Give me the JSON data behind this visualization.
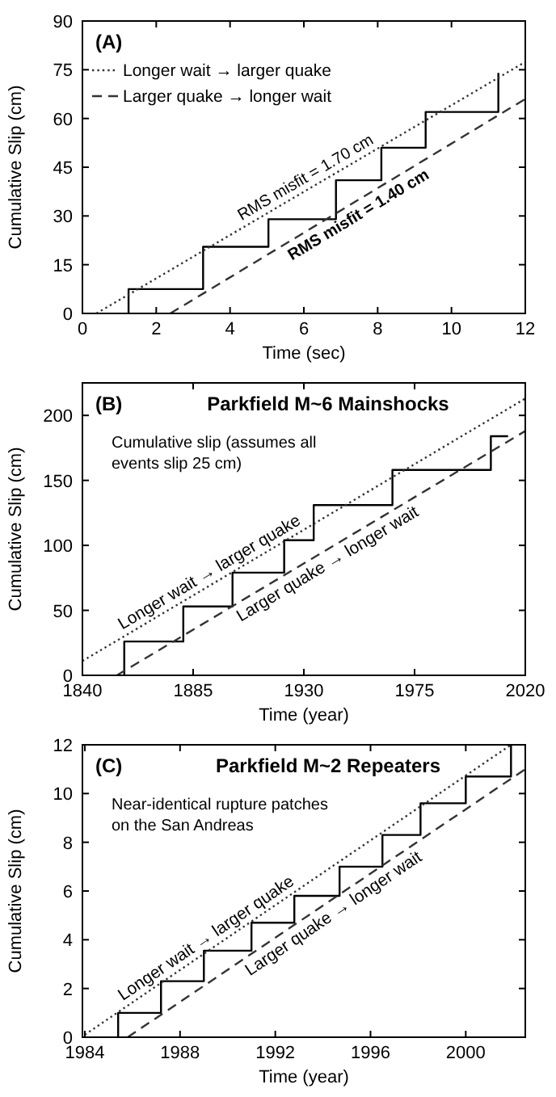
{
  "chart_data": [
    {
      "type": "line",
      "title": "(A)",
      "xlabel": "Time (sec)",
      "ylabel": "Cumulative Slip (cm)",
      "xlim": [
        0,
        12
      ],
      "xticks": [
        0,
        2,
        4,
        6,
        8,
        10,
        12
      ],
      "ylim": [
        0,
        90
      ],
      "yticks": [
        0,
        15,
        30,
        45,
        60,
        75,
        90
      ],
      "legend": "top left",
      "annotations": [
        {
          "text": "RMS misfit = 1.70 cm",
          "x": 6.2,
          "y": 38.8
        },
        {
          "text": "RMS misfit = 1.40 cm",
          "x": 7.3,
          "y": 33.7
        }
      ],
      "series": [
        {
          "type": "step",
          "color": "#000000",
          "x": [
            1.25,
            1.25,
            3.27,
            5.04,
            6.87,
            8.1,
            9.3,
            11.27
          ],
          "values": [
            0,
            7.5,
            20.5,
            29,
            41,
            51,
            62,
            74
          ]
        },
        {
          "name": "Longer wait → larger quake",
          "color": "#333333",
          "line_style": "dotted",
          "x": [
            0.38,
            12
          ],
          "values": [
            0,
            77.4
          ]
        },
        {
          "name": "Larger quake → longer wait",
          "color": "#333333",
          "line_style": "dashed",
          "x": [
            2.38,
            12
          ],
          "values": [
            0,
            66
          ]
        }
      ]
    },
    {
      "type": "line",
      "title": "(B)",
      "subtitle": "Parkfield M~6  Mainshocks",
      "xlabel": "Time (year)",
      "ylabel": "Cumulative Slip (cm)",
      "xlim": [
        1840,
        2020
      ],
      "xticks": [
        1840,
        1885,
        1930,
        1975,
        2020
      ],
      "ylim": [
        0,
        225
      ],
      "yticks": [
        0,
        50,
        100,
        150,
        200
      ],
      "legend": false,
      "annotations": [
        "Cumulative slip (assumes all events slip 25 cm)"
      ],
      "series": [
        {
          "type": "step",
          "color": "#000000",
          "x": [
            1857,
            1857,
            1881,
            1901,
            1922,
            1934,
            1966,
            2006,
            2013
          ],
          "values": [
            0,
            26,
            53,
            79,
            104,
            131,
            158,
            184,
            184
          ]
        },
        {
          "name": "Longer wait → larger quake",
          "color": "#333333",
          "line_style": "dotted",
          "x": [
            1840,
            2020
          ],
          "values": [
            11,
            213
          ]
        },
        {
          "name": "Larger quake → longer wait",
          "color": "#333333",
          "line_style": "dashed",
          "x": [
            1854,
            2020
          ],
          "values": [
            0,
            188
          ]
        }
      ]
    },
    {
      "type": "line",
      "title": "(C)",
      "subtitle": "Parkfield M~2 Repeaters",
      "xlabel": "Time (year)",
      "ylabel": "Cumulative Slip (cm)",
      "xlim": [
        1983.9,
        2002.5
      ],
      "xticks": [
        1984,
        1988,
        1992,
        1996,
        2000
      ],
      "ylim": [
        0,
        12
      ],
      "yticks": [
        0,
        2,
        4,
        6,
        8,
        10,
        12
      ],
      "legend": false,
      "annotations": [
        "Near-identical rupture patches on the San Andreas"
      ],
      "series": [
        {
          "type": "step",
          "color": "#000000",
          "x": [
            1985.4,
            1985.4,
            1987.2,
            1989,
            1991,
            1992.8,
            1994.7,
            1996.5,
            1998.1,
            2000,
            2001.9
          ],
          "values": [
            0,
            1,
            2.3,
            3.55,
            4.7,
            5.8,
            7,
            8.3,
            9.6,
            10.7,
            12
          ]
        },
        {
          "name": "Longer wait → larger quake",
          "color": "#333333",
          "line_style": "dotted",
          "x": [
            1984,
            2001.9
          ],
          "values": [
            0.1,
            12
          ]
        },
        {
          "name": "Larger quake → longer wait",
          "color": "#333333",
          "line_style": "dashed",
          "x": [
            1985.8,
            2002.5
          ],
          "values": [
            0,
            11
          ]
        }
      ]
    }
  ]
}
